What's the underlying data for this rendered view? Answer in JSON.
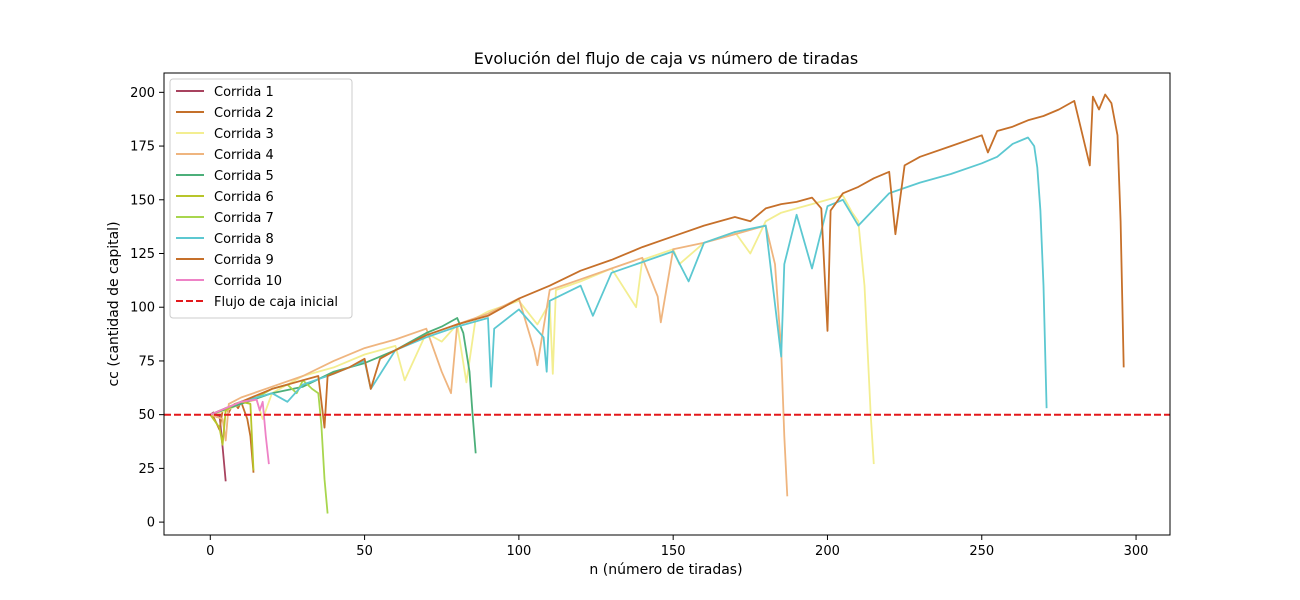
{
  "chart_data": {
    "type": "line",
    "title": "Evolución del flujo de caja vs número de tiradas",
    "xlabel": "n (número de tiradas)",
    "ylabel": "cc (cantidad de capital)",
    "xlim": [
      -15,
      311
    ],
    "ylim": [
      -6,
      209
    ],
    "xticks": [
      0,
      50,
      100,
      150,
      200,
      250,
      300
    ],
    "yticks": [
      0,
      25,
      50,
      75,
      100,
      125,
      150,
      175,
      200
    ],
    "legend_position": "top-left",
    "grid": false,
    "series": [
      {
        "name": "Corrida 1",
        "color": "#a8435f",
        "points": [
          [
            0,
            50
          ],
          [
            1,
            51
          ],
          [
            2,
            49
          ],
          [
            3,
            50
          ],
          [
            4,
            35
          ],
          [
            5,
            19
          ]
        ]
      },
      {
        "name": "Corrida 2",
        "color": "#c4702a",
        "points": [
          [
            0,
            50
          ],
          [
            1,
            49
          ],
          [
            2,
            46
          ],
          [
            3,
            43
          ],
          [
            4,
            52
          ],
          [
            5,
            53
          ],
          [
            6,
            51
          ],
          [
            7,
            54
          ],
          [
            8,
            55
          ],
          [
            9,
            53
          ],
          [
            10,
            56
          ],
          [
            11,
            52
          ],
          [
            12,
            48
          ],
          [
            13,
            40
          ],
          [
            14,
            23
          ]
        ]
      },
      {
        "name": "Corrida 3",
        "color": "#f3ee91",
        "points": [
          [
            0,
            50
          ],
          [
            5,
            52
          ],
          [
            10,
            55
          ],
          [
            15,
            57
          ],
          [
            17,
            48
          ],
          [
            20,
            60
          ],
          [
            25,
            64
          ],
          [
            30,
            68
          ],
          [
            40,
            72
          ],
          [
            50,
            78
          ],
          [
            60,
            82
          ],
          [
            63,
            66
          ],
          [
            70,
            88
          ],
          [
            75,
            84
          ],
          [
            80,
            92
          ],
          [
            83,
            65
          ],
          [
            86,
            95
          ],
          [
            90,
            98
          ],
          [
            100,
            103
          ],
          [
            106,
            92
          ],
          [
            110,
            102
          ],
          [
            111,
            69
          ],
          [
            112,
            108
          ],
          [
            120,
            112
          ],
          [
            130,
            118
          ],
          [
            138,
            100
          ],
          [
            140,
            122
          ],
          [
            150,
            127
          ],
          [
            152,
            120
          ],
          [
            160,
            130
          ],
          [
            170,
            135
          ],
          [
            175,
            125
          ],
          [
            180,
            140
          ],
          [
            185,
            144
          ],
          [
            190,
            146
          ],
          [
            195,
            148
          ],
          [
            200,
            150
          ],
          [
            205,
            152
          ],
          [
            208,
            144
          ],
          [
            210,
            140
          ],
          [
            212,
            110
          ],
          [
            214,
            50
          ],
          [
            215,
            27
          ]
        ]
      },
      {
        "name": "Corrida 4",
        "color": "#efb57f",
        "points": [
          [
            0,
            50
          ],
          [
            4,
            48
          ],
          [
            5,
            38
          ],
          [
            6,
            55
          ],
          [
            10,
            58
          ],
          [
            20,
            63
          ],
          [
            30,
            68
          ],
          [
            40,
            75
          ],
          [
            50,
            81
          ],
          [
            60,
            85
          ],
          [
            70,
            90
          ],
          [
            75,
            70
          ],
          [
            78,
            60
          ],
          [
            80,
            92
          ],
          [
            90,
            97
          ],
          [
            100,
            104
          ],
          [
            105,
            80
          ],
          [
            106,
            73
          ],
          [
            110,
            108
          ],
          [
            120,
            113
          ],
          [
            130,
            118
          ],
          [
            140,
            123
          ],
          [
            145,
            105
          ],
          [
            146,
            93
          ],
          [
            150,
            127
          ],
          [
            160,
            130
          ],
          [
            170,
            134
          ],
          [
            180,
            138
          ],
          [
            183,
            120
          ],
          [
            185,
            80
          ],
          [
            186,
            40
          ],
          [
            187,
            12
          ]
        ]
      },
      {
        "name": "Corrida 5",
        "color": "#4caf7a",
        "points": [
          [
            0,
            50
          ],
          [
            10,
            55
          ],
          [
            20,
            60
          ],
          [
            30,
            63
          ],
          [
            40,
            70
          ],
          [
            50,
            74
          ],
          [
            60,
            80
          ],
          [
            70,
            88
          ],
          [
            75,
            91
          ],
          [
            80,
            95
          ],
          [
            82,
            88
          ],
          [
            84,
            70
          ],
          [
            85,
            50
          ],
          [
            86,
            32
          ]
        ]
      },
      {
        "name": "Corrida 6",
        "color": "#b8c52a",
        "points": [
          [
            0,
            50
          ],
          [
            3,
            44
          ],
          [
            4,
            36
          ],
          [
            5,
            52
          ],
          [
            8,
            55
          ],
          [
            10,
            56
          ],
          [
            13,
            55
          ],
          [
            14,
            24
          ]
        ]
      },
      {
        "name": "Corrida 7",
        "color": "#a8d64e",
        "points": [
          [
            0,
            50
          ],
          [
            5,
            53
          ],
          [
            10,
            56
          ],
          [
            15,
            58
          ],
          [
            20,
            62
          ],
          [
            25,
            64
          ],
          [
            28,
            60
          ],
          [
            30,
            66
          ],
          [
            33,
            62
          ],
          [
            35,
            60
          ],
          [
            36,
            45
          ],
          [
            37,
            20
          ],
          [
            38,
            4
          ]
        ]
      },
      {
        "name": "Corrida 8",
        "color": "#5cc8d1",
        "points": [
          [
            0,
            50
          ],
          [
            10,
            56
          ],
          [
            20,
            60
          ],
          [
            25,
            56
          ],
          [
            30,
            64
          ],
          [
            40,
            69
          ],
          [
            50,
            75
          ],
          [
            52,
            62
          ],
          [
            60,
            80
          ],
          [
            70,
            86
          ],
          [
            80,
            91
          ],
          [
            90,
            95
          ],
          [
            91,
            63
          ],
          [
            92,
            90
          ],
          [
            100,
            99
          ],
          [
            108,
            86
          ],
          [
            109,
            70
          ],
          [
            110,
            103
          ],
          [
            120,
            110
          ],
          [
            124,
            96
          ],
          [
            130,
            116
          ],
          [
            140,
            121
          ],
          [
            150,
            126
          ],
          [
            155,
            112
          ],
          [
            160,
            130
          ],
          [
            170,
            135
          ],
          [
            180,
            138
          ],
          [
            185,
            77
          ],
          [
            186,
            120
          ],
          [
            190,
            143
          ],
          [
            195,
            118
          ],
          [
            200,
            147
          ],
          [
            205,
            150
          ],
          [
            210,
            138
          ],
          [
            220,
            153
          ],
          [
            230,
            158
          ],
          [
            240,
            162
          ],
          [
            250,
            167
          ],
          [
            255,
            170
          ],
          [
            260,
            176
          ],
          [
            265,
            179
          ],
          [
            267,
            175
          ],
          [
            268,
            165
          ],
          [
            269,
            145
          ],
          [
            270,
            110
          ],
          [
            271,
            53
          ]
        ]
      },
      {
        "name": "Corrida 9",
        "color": "#c6702a",
        "points": [
          [
            0,
            50
          ],
          [
            10,
            56
          ],
          [
            20,
            62
          ],
          [
            30,
            66
          ],
          [
            35,
            68
          ],
          [
            37,
            44
          ],
          [
            38,
            68
          ],
          [
            45,
            72
          ],
          [
            50,
            76
          ],
          [
            52,
            62
          ],
          [
            55,
            76
          ],
          [
            60,
            80
          ],
          [
            70,
            87
          ],
          [
            80,
            92
          ],
          [
            90,
            96
          ],
          [
            100,
            104
          ],
          [
            110,
            110
          ],
          [
            120,
            117
          ],
          [
            130,
            122
          ],
          [
            140,
            128
          ],
          [
            150,
            133
          ],
          [
            160,
            138
          ],
          [
            170,
            142
          ],
          [
            175,
            140
          ],
          [
            180,
            146
          ],
          [
            185,
            148
          ],
          [
            190,
            149
          ],
          [
            195,
            151
          ],
          [
            198,
            146
          ],
          [
            200,
            89
          ],
          [
            201,
            145
          ],
          [
            205,
            153
          ],
          [
            210,
            156
          ],
          [
            215,
            160
          ],
          [
            220,
            163
          ],
          [
            222,
            134
          ],
          [
            225,
            166
          ],
          [
            230,
            170
          ],
          [
            240,
            175
          ],
          [
            250,
            180
          ],
          [
            252,
            172
          ],
          [
            255,
            182
          ],
          [
            260,
            184
          ],
          [
            265,
            187
          ],
          [
            270,
            189
          ],
          [
            275,
            192
          ],
          [
            280,
            196
          ],
          [
            285,
            166
          ],
          [
            286,
            198
          ],
          [
            288,
            192
          ],
          [
            290,
            199
          ],
          [
            292,
            195
          ],
          [
            294,
            180
          ],
          [
            295,
            140
          ],
          [
            296,
            72
          ]
        ]
      },
      {
        "name": "Corrida 10",
        "color": "#ee82c6",
        "points": [
          [
            0,
            50
          ],
          [
            5,
            53
          ],
          [
            10,
            56
          ],
          [
            15,
            57
          ],
          [
            16,
            52
          ],
          [
            17,
            56
          ],
          [
            18,
            40
          ],
          [
            19,
            27
          ]
        ]
      },
      {
        "name": "Flujo de caja inicial",
        "color": "#e3191c",
        "dashed": true,
        "points": [
          [
            -15,
            50
          ],
          [
            311,
            50
          ]
        ]
      }
    ]
  }
}
